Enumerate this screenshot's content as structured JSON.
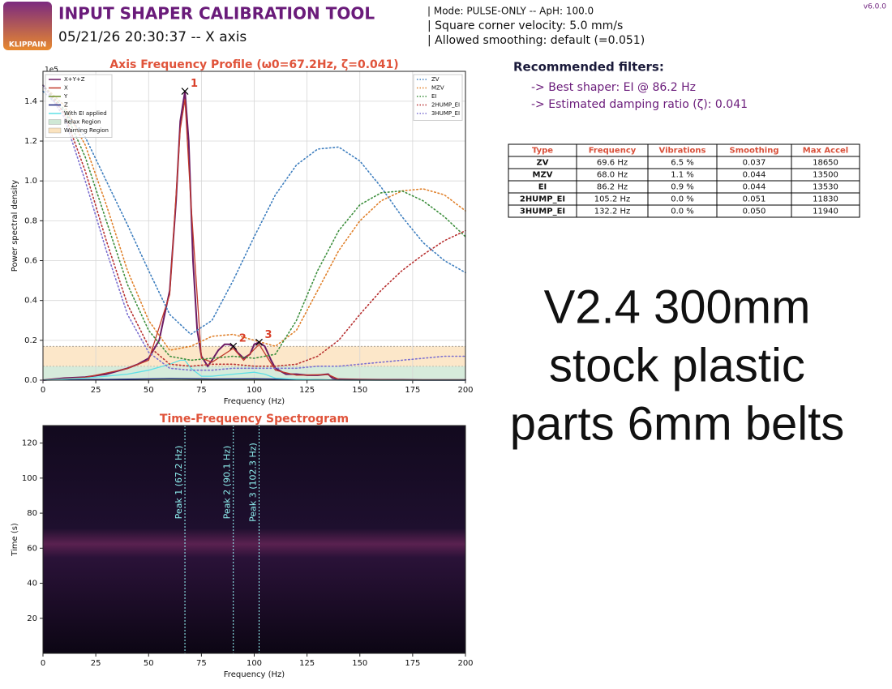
{
  "header": {
    "title": "INPUT SHAPER CALIBRATION TOOL",
    "subtitle": "05/21/26 20:30:37 -- X axis",
    "logo": "KLIPPAIN",
    "version": "v6.0.0",
    "info": [
      "| Mode: PULSE-ONLY -- ApH: 100.0",
      "| Square corner velocity: 5.0 mm/s",
      "| Allowed smoothing: default (=0.051)"
    ]
  },
  "recommendation": {
    "title": "Recommended filters:",
    "lines": [
      "-> Best shaper: EI @ 86.2 Hz",
      "-> Estimated damping ratio (ζ): 0.041"
    ]
  },
  "table": {
    "header": [
      "Type",
      "Frequency",
      "Vibrations",
      "Smoothing",
      "Max Accel"
    ],
    "rows": [
      [
        "ZV",
        "69.6 Hz",
        "6.5 %",
        "0.037",
        "18650"
      ],
      [
        "MZV",
        "68.0 Hz",
        "1.1 %",
        "0.044",
        "13500"
      ],
      [
        "EI",
        "86.2 Hz",
        "0.9 %",
        "0.044",
        "13530"
      ],
      [
        "2HUMP_EI",
        "105.2 Hz",
        "0.0 %",
        "0.051",
        "11830"
      ],
      [
        "3HUMP_EI",
        "132.2 Hz",
        "0.0 %",
        "0.050",
        "11940"
      ]
    ]
  },
  "annotation": {
    "lines": [
      "V2.4 300mm",
      "stock plastic",
      "parts 6mm belts"
    ]
  },
  "chart_data": [
    {
      "type": "line",
      "title": "Axis Frequency Profile (ω0=67.2Hz, ζ=0.041)",
      "x_label": "Frequency (Hz)",
      "y_label": "Power spectral density",
      "y_offset_label": "1e5",
      "xlim": [
        0,
        200
      ],
      "ylim": [
        0,
        1.55
      ],
      "xticks": [
        0,
        25,
        50,
        75,
        100,
        125,
        150,
        175,
        200
      ],
      "yticks": [
        {
          "value": 0,
          "label": "0.0"
        },
        {
          "value": 0.2,
          "label": "0.2"
        },
        {
          "value": 0.4,
          "label": "0.4"
        },
        {
          "value": 0.6,
          "label": "0.6"
        },
        {
          "value": 0.8,
          "label": "0.8"
        },
        {
          "value": 1,
          "label": "1.0"
        },
        {
          "value": 1.2,
          "label": "1.2"
        },
        {
          "value": 1.4,
          "label": "1.4"
        }
      ],
      "grid": true,
      "series": [
        {
          "name": "X+Y+Z",
          "color": "#6b1a63",
          "style": "solid",
          "x": [
            0,
            10,
            20,
            30,
            40,
            45,
            50,
            55,
            60,
            63,
            65,
            67.2,
            69,
            71,
            73,
            75,
            78,
            80,
            83,
            86,
            88,
            90.1,
            92,
            95,
            98,
            100,
            102.3,
            105,
            108,
            110,
            115,
            120,
            125,
            130,
            135,
            137,
            140,
            150,
            160,
            170,
            180,
            190,
            200
          ],
          "values": [
            0,
            0.01,
            0.015,
            0.03,
            0.06,
            0.08,
            0.11,
            0.2,
            0.45,
            0.9,
            1.3,
            1.45,
            1.2,
            0.6,
            0.25,
            0.12,
            0.07,
            0.1,
            0.15,
            0.18,
            0.18,
            0.17,
            0.14,
            0.11,
            0.13,
            0.18,
            0.19,
            0.17,
            0.1,
            0.06,
            0.03,
            0.03,
            0.025,
            0.025,
            0.03,
            0.01,
            0.005,
            0.003,
            0.002,
            0.002,
            0.001,
            0.001,
            0.001
          ]
        },
        {
          "name": "X",
          "color": "#c0392b",
          "style": "solid",
          "x": [
            0,
            20,
            40,
            50,
            60,
            65,
            67.2,
            70,
            75,
            80,
            90.1,
            95,
            102.3,
            110,
            120,
            135,
            140,
            160,
            200
          ],
          "values": [
            0,
            0.014,
            0.058,
            0.1,
            0.43,
            1.26,
            1.41,
            0.9,
            0.11,
            0.09,
            0.16,
            0.1,
            0.18,
            0.05,
            0.025,
            0.028,
            0.004,
            0.002,
            0.001
          ]
        },
        {
          "name": "Y",
          "color": "#6b8e23",
          "style": "solid",
          "x": [
            0,
            20,
            40,
            60,
            80,
            100,
            120,
            140,
            160,
            180,
            200
          ],
          "values": [
            0,
            0.002,
            0.004,
            0.006,
            0.004,
            0.005,
            0.003,
            0.001,
            0,
            0,
            0
          ]
        },
        {
          "name": "Z",
          "color": "#1a237e",
          "style": "solid",
          "x": [
            0,
            20,
            40,
            60,
            80,
            100,
            120,
            140,
            160,
            180,
            200
          ],
          "values": [
            0,
            0.003,
            0.005,
            0.008,
            0.006,
            0.007,
            0.004,
            0.001,
            0,
            0,
            0
          ]
        },
        {
          "name": "With EI applied",
          "color": "#5ee0e6",
          "style": "solid",
          "x": [
            0,
            20,
            40,
            50,
            60,
            65,
            67.2,
            70,
            75,
            80,
            90,
            100,
            105,
            110,
            120,
            140,
            200
          ],
          "values": [
            0,
            0.01,
            0.03,
            0.05,
            0.08,
            0.1,
            0.1,
            0.06,
            0.02,
            0.02,
            0.03,
            0.04,
            0.03,
            0.01,
            0.005,
            0,
            0
          ]
        },
        {
          "name": "ZV",
          "color": "#3f7fbf",
          "style": "dotted",
          "x": [
            0,
            10,
            20,
            30,
            40,
            50,
            60,
            70,
            80,
            90,
            100,
            110,
            120,
            130,
            140,
            150,
            160,
            170,
            180,
            190,
            200
          ],
          "values": [
            1.45,
            1.35,
            1.22,
            1.0,
            0.78,
            0.55,
            0.33,
            0.23,
            0.3,
            0.5,
            0.72,
            0.93,
            1.08,
            1.16,
            1.17,
            1.1,
            0.97,
            0.82,
            0.69,
            0.6,
            0.54
          ]
        },
        {
          "name": "MZV",
          "color": "#e0802a",
          "style": "dotted",
          "x": [
            0,
            10,
            20,
            30,
            40,
            50,
            60,
            70,
            80,
            90,
            100,
            110,
            120,
            130,
            140,
            150,
            160,
            170,
            180,
            190,
            200
          ],
          "values": [
            1.48,
            1.38,
            1.18,
            0.88,
            0.55,
            0.3,
            0.15,
            0.17,
            0.22,
            0.23,
            0.2,
            0.17,
            0.25,
            0.45,
            0.65,
            0.8,
            0.9,
            0.95,
            0.96,
            0.93,
            0.85
          ]
        },
        {
          "name": "EI",
          "color": "#3d8f3d",
          "style": "dotted",
          "x": [
            0,
            10,
            20,
            30,
            40,
            50,
            60,
            70,
            80,
            90,
            100,
            110,
            120,
            130,
            140,
            150,
            160,
            170,
            180,
            190,
            200
          ],
          "values": [
            1.48,
            1.36,
            1.12,
            0.8,
            0.48,
            0.25,
            0.12,
            0.1,
            0.11,
            0.12,
            0.11,
            0.13,
            0.3,
            0.55,
            0.75,
            0.88,
            0.94,
            0.95,
            0.9,
            0.82,
            0.72
          ]
        },
        {
          "name": "2HUMP_EI",
          "color": "#b83232",
          "style": "dotted",
          "x": [
            0,
            10,
            20,
            30,
            40,
            50,
            60,
            70,
            80,
            90,
            100,
            110,
            120,
            130,
            140,
            150,
            160,
            170,
            180,
            190,
            200
          ],
          "values": [
            1.48,
            1.34,
            1.05,
            0.7,
            0.38,
            0.17,
            0.08,
            0.07,
            0.08,
            0.08,
            0.07,
            0.07,
            0.08,
            0.12,
            0.2,
            0.33,
            0.45,
            0.55,
            0.63,
            0.7,
            0.75
          ]
        },
        {
          "name": "3HUMP_EI",
          "color": "#7b6fd0",
          "style": "dotted",
          "x": [
            0,
            10,
            20,
            30,
            40,
            50,
            60,
            70,
            80,
            90,
            100,
            110,
            120,
            130,
            140,
            150,
            160,
            170,
            180,
            190,
            200
          ],
          "values": [
            1.48,
            1.32,
            1.0,
            0.65,
            0.33,
            0.14,
            0.06,
            0.05,
            0.05,
            0.06,
            0.06,
            0.06,
            0.06,
            0.07,
            0.07,
            0.08,
            0.09,
            0.1,
            0.11,
            0.12,
            0.12
          ]
        }
      ],
      "regions": [
        {
          "name": "Relax Region",
          "color": "#cfe8d5",
          "range": [
            0,
            0.07
          ]
        },
        {
          "name": "Warning Region",
          "color": "#fbe3bf",
          "range": [
            0.07,
            0.17
          ]
        }
      ],
      "peaks": [
        {
          "x": 67.2,
          "y": 1.45,
          "label": "1"
        },
        {
          "x": 90.1,
          "y": 0.17,
          "label": "2"
        },
        {
          "x": 102.3,
          "y": 0.19,
          "label": "3"
        }
      ]
    },
    {
      "type": "spectrogram",
      "title": "Time-Frequency Spectrogram",
      "x_label": "Frequency (Hz)",
      "y_label": "Time (s)",
      "xlim": [
        0,
        200
      ],
      "ylim": [
        0,
        130
      ],
      "xticks": [
        0,
        25,
        50,
        75,
        100,
        125,
        150,
        175,
        200
      ],
      "yticks": [
        20,
        40,
        60,
        80,
        100,
        120
      ],
      "grid": false,
      "peaks": [
        {
          "x": 67.2,
          "label": "Peak 1 (67.2 Hz)"
        },
        {
          "x": 90.1,
          "label": "Peak 2 (90.1 Hz)"
        },
        {
          "x": 102.3,
          "label": "Peak 3 (102.3 Hz)"
        }
      ]
    }
  ]
}
